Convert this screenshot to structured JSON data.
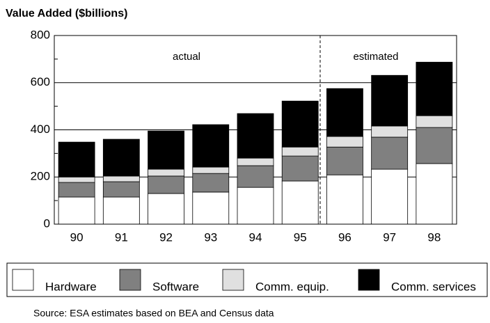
{
  "chart_data": {
    "type": "stacked_bar",
    "title": "Value Added ($billions)",
    "categories": [
      "90",
      "91",
      "92",
      "93",
      "94",
      "95",
      "96",
      "97",
      "98"
    ],
    "series": [
      {
        "name": "Hardware",
        "color": "#ffffff",
        "values": [
          115,
          115,
          130,
          136,
          156,
          183,
          209,
          233,
          257
        ]
      },
      {
        "name": "Software",
        "color": "#808080",
        "values": [
          62,
          65,
          74,
          79,
          92,
          106,
          118,
          136,
          153
        ]
      },
      {
        "name": "Comm. equip.",
        "color": "#e0e0e0",
        "values": [
          23,
          24,
          29,
          27,
          32,
          38,
          45,
          47,
          50
        ]
      },
      {
        "name": "Comm. services",
        "color": "#000000",
        "values": [
          148,
          156,
          162,
          180,
          189,
          195,
          203,
          215,
          227
        ]
      }
    ],
    "ylim": [
      0,
      800
    ],
    "yticks": [
      0,
      200,
      400,
      600,
      800
    ],
    "grid": true,
    "annotations": [
      "actual",
      "estimated"
    ],
    "source": "Source:  ESA estimates based on BEA and Census data"
  }
}
